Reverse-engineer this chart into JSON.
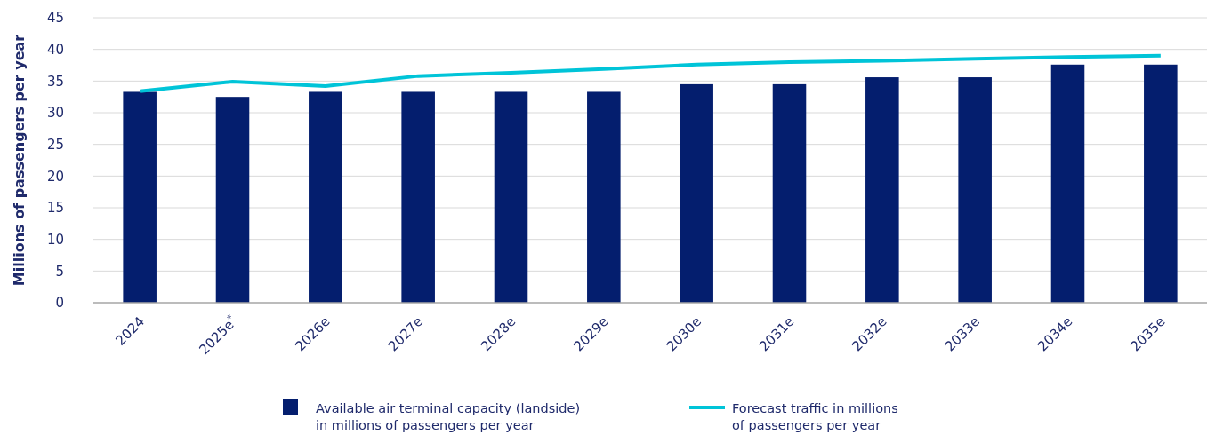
{
  "chart_data": {
    "type": "bar",
    "ylabel": "Millions of passengers per year",
    "categories": [
      "2024",
      "2025e$^{*}$",
      "2026e",
      "2027e",
      "2028e",
      "2029e",
      "2030e",
      "2031e",
      "2032e",
      "2033e",
      "2034e",
      "2035e"
    ],
    "series": [
      {
        "name": "Available air terminal capacity (landside) in millions of passengers per year",
        "color": "#041e6e",
        "values": [
          33.3,
          32.5,
          33.3,
          33.3,
          33.3,
          33.3,
          34.5,
          34.5,
          35.6,
          35.6,
          37.6,
          37.6
        ]
      },
      {
        "name": "Forecast traffic in millions of passengers per year",
        "type": "line",
        "color": "#00c4d8",
        "values": [
          33.4,
          34.9,
          34.2,
          35.8,
          36.3,
          36.9,
          37.6,
          38.0,
          38.2,
          38.5,
          38.8,
          39.0
        ]
      }
    ],
    "ylim": [
      0,
      45
    ],
    "yticks": [
      0,
      5,
      10,
      15,
      20,
      25,
      30,
      35,
      40,
      45
    ],
    "grid": "y",
    "legend": "bottom",
    "marker": "none",
    "line_style": "solid"
  }
}
